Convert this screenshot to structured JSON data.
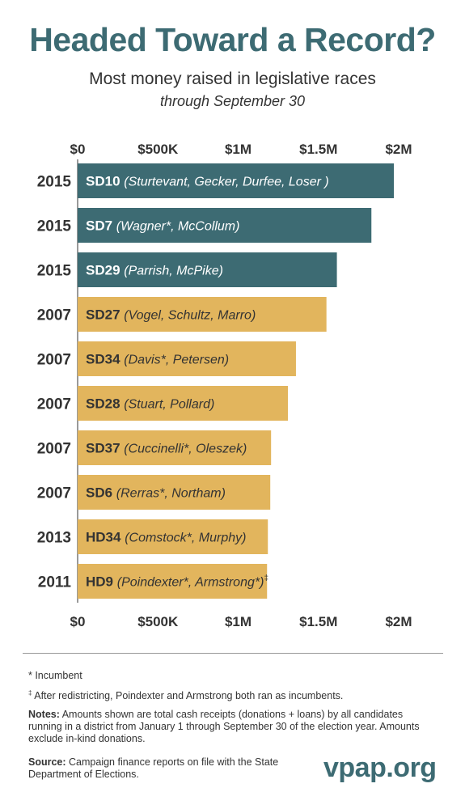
{
  "chart_data": {
    "type": "bar",
    "orientation": "horizontal",
    "title": "Headed Toward a Record?",
    "subtitle": "Most money raised in legislative races",
    "subtitle2": "through September 30",
    "x_ticks": [
      "$0",
      "$500K",
      "$1M",
      "$1.5M",
      "$2M"
    ],
    "xlim": [
      0,
      2000000
    ],
    "grid": false,
    "colors": {
      "y2015": "#3d6b73",
      "other": "#e2b55d",
      "label_on_teal": "#ffffff",
      "label_on_gold": "#333333"
    },
    "bars": [
      {
        "year": "2015",
        "district": "SD10",
        "candidates": "(Sturtevant, Gecker, Durfee, Loser )",
        "value": 1970000
      },
      {
        "year": "2015",
        "district": "SD7",
        "candidates": "(Wagner*, McCollum)",
        "value": 1830000
      },
      {
        "year": "2015",
        "district": "SD29",
        "candidates": "(Parrish, McPike)",
        "value": 1615000
      },
      {
        "year": "2007",
        "district": "SD27",
        "candidates": "(Vogel, Schultz, Marro)",
        "value": 1550000
      },
      {
        "year": "2007",
        "district": "SD34",
        "candidates": "(Davis*, Petersen)",
        "value": 1360000
      },
      {
        "year": "2007",
        "district": "SD28",
        "candidates": "(Stuart, Pollard)",
        "value": 1310000
      },
      {
        "year": "2007",
        "district": "SD37",
        "candidates": "(Cuccinelli*, Oleszek)",
        "value": 1205000
      },
      {
        "year": "2007",
        "district": "SD6",
        "candidates": "(Rerras*, Northam)",
        "value": 1200000
      },
      {
        "year": "2013",
        "district": "HD34",
        "candidates": "(Comstock*, Murphy)",
        "value": 1185000
      },
      {
        "year": "2011",
        "district": "HD9",
        "candidates": "(Poindexter*, Armstrong*)",
        "value": 1180000,
        "marker": "‡"
      }
    ]
  },
  "footnotes": {
    "incumbent": "* Incumbent",
    "dagger_symbol": "‡",
    "dagger_text": "After redistricting, Poindexter and Armstrong both ran as incumbents.",
    "notes_label": "Notes:",
    "notes_text": "Amounts shown are total cash receipts (donations + loans) by all candidates running in a district from January 1 through September 30 of the election year. Amounts exclude in-kind donations.",
    "source_label": "Source:",
    "source_text": "Campaign finance reports on file with the State Department of Elections."
  },
  "logo_text": "vpap.org"
}
